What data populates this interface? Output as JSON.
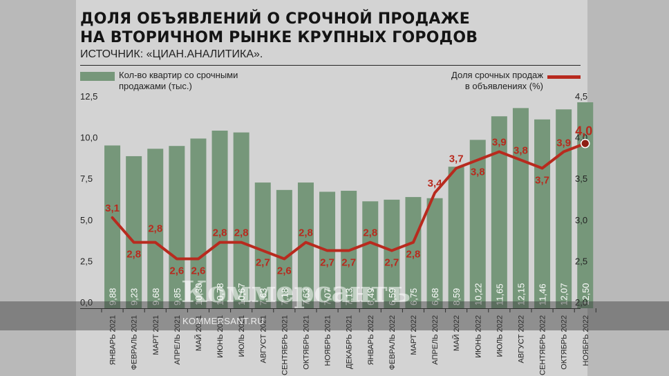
{
  "chart_data": {
    "type": "bar",
    "title": "ДОЛЯ ОБЪЯВЛЕНИЙ О СРОЧНОЙ ПРОДАЖЕ НА ВТОРИЧНОМ РЫНКЕ КРУПНЫХ ГОРОДОВ",
    "title_lines": [
      "ДОЛЯ ОБЪЯВЛЕНИЙ О СРОЧНОЙ ПРОДАЖЕ",
      "НА ВТОРИЧНОМ РЫНКЕ КРУПНЫХ ГОРОДОВ"
    ],
    "source": "ИСТОЧНИК: «ЦИАН.АНАЛИТИКА».",
    "categories": [
      "ЯНВАРЬ 2021",
      "ФЕВРАЛЬ 2021",
      "МАРТ 2021",
      "АПРЕЛЬ 2021",
      "МАЙ 2021",
      "ИЮНЬ 2021",
      "ИЮЛЬ 2021",
      "АВГУСТ 2021",
      "СЕНТЯБРЬ 2021",
      "ОКТЯБРЬ 2021",
      "НОЯБРЬ 2021",
      "ДЕКАБРЬ 2021",
      "ЯНВАРЬ 2022",
      "ФЕВРАЛЬ 2022",
      "МАРТ 2022",
      "АПРЕЛЬ 2022",
      "МАЙ 2022",
      "ИЮНЬ 2022",
      "ИЮЛЬ 2022",
      "АВГУСТ 2022",
      "СЕНТЯБРЬ 2022",
      "ОКТЯБРЬ 2022",
      "НОЯБРЬ 2022"
    ],
    "series": [
      {
        "name": "Кол-во квартир со срочными продажами (тыс.)",
        "type": "bar",
        "axis": "left",
        "color": "#76977a",
        "values": [
          9.88,
          9.23,
          9.68,
          9.85,
          10.3,
          10.78,
          10.67,
          7.63,
          7.18,
          7.63,
          7.07,
          7.13,
          6.49,
          6.59,
          6.75,
          6.68,
          8.59,
          10.22,
          11.65,
          12.15,
          11.46,
          12.07,
          12.5
        ],
        "labels": [
          "9,88",
          "9,23",
          "9,68",
          "9,85",
          "10,30",
          "10,78",
          "10,67",
          "7,63",
          "7,18",
          "7,63",
          "7,07",
          "7,13",
          "6,49",
          "6,59",
          "6,75",
          "6,68",
          "8,59",
          "10,22",
          "11,65",
          "12,15",
          "11,46",
          "12,07",
          "12,50"
        ]
      },
      {
        "name": "Доля срочных продаж в объявлениях (%)",
        "type": "line",
        "axis": "right",
        "color": "#b82a1e",
        "values": [
          3.1,
          2.8,
          2.8,
          2.6,
          2.6,
          2.8,
          2.8,
          2.7,
          2.6,
          2.8,
          2.7,
          2.7,
          2.8,
          2.7,
          2.8,
          3.4,
          3.7,
          3.8,
          3.9,
          3.8,
          3.7,
          3.9,
          4.0
        ],
        "labels": [
          "3,1",
          "2,8",
          "2,8",
          "2,6",
          "2,6",
          "2,8",
          "2,8",
          "2,7",
          "2,6",
          "2,8",
          "2,7",
          "2,7",
          "2,8",
          "2,7",
          "2,8",
          "3,4",
          "3,7",
          "3,8",
          "3,9",
          "3,8",
          "3,7",
          "3,9",
          "4,0"
        ]
      }
    ],
    "legend": {
      "bars_label_lines": [
        "Кол-во квартир со срочными",
        "продажами (тыс.)"
      ],
      "line_label_lines": [
        "Доля срочных продаж",
        "в объявлениях (%)"
      ],
      "placement": "top"
    },
    "y_left": {
      "ylim": [
        0,
        12.5
      ],
      "ticks": [
        "0,0",
        "2,5",
        "5,0",
        "7,5",
        "10,0",
        "12,5"
      ]
    },
    "y_right": {
      "ylim": [
        2.0,
        4.5
      ],
      "ticks": [
        "2,0",
        "2,5",
        "3,0",
        "3,5",
        "4,0",
        "4,5"
      ]
    },
    "grid": false
  },
  "watermark": {
    "logo": "Коммерсантъ",
    "url": "KOMMERSANT.RU"
  },
  "colors": {
    "background": "#b9b9b9",
    "panel": "#d3d3d3",
    "bar": "#76977a",
    "line": "#b82a1e",
    "text": "#141414"
  }
}
